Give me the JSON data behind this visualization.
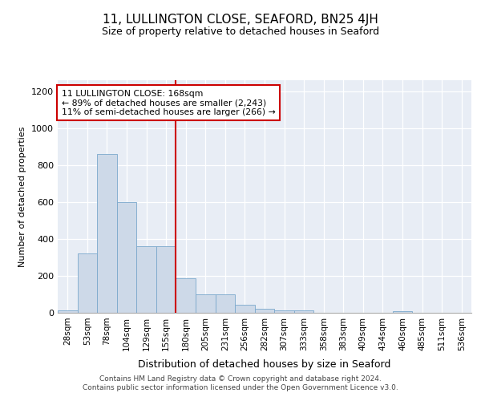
{
  "title": "11, LULLINGTON CLOSE, SEAFORD, BN25 4JH",
  "subtitle": "Size of property relative to detached houses in Seaford",
  "xlabel": "Distribution of detached houses by size in Seaford",
  "ylabel": "Number of detached properties",
  "categories": [
    "28sqm",
    "53sqm",
    "78sqm",
    "104sqm",
    "129sqm",
    "155sqm",
    "180sqm",
    "205sqm",
    "231sqm",
    "256sqm",
    "282sqm",
    "307sqm",
    "333sqm",
    "358sqm",
    "383sqm",
    "409sqm",
    "434sqm",
    "460sqm",
    "485sqm",
    "511sqm",
    "536sqm"
  ],
  "values": [
    15,
    320,
    860,
    600,
    360,
    360,
    185,
    100,
    100,
    45,
    20,
    15,
    15,
    0,
    0,
    0,
    0,
    8,
    0,
    0,
    0
  ],
  "bar_color": "#cdd9e8",
  "bar_edge_color": "#7aa8cc",
  "vline_color": "#cc0000",
  "vline_pos": 6,
  "ylim": [
    0,
    1260
  ],
  "yticks": [
    0,
    200,
    400,
    600,
    800,
    1000,
    1200
  ],
  "annotation_lines": [
    "11 LULLINGTON CLOSE: 168sqm",
    "← 89% of detached houses are smaller (2,243)",
    "11% of semi-detached houses are larger (266) →"
  ],
  "bg_color": "#e8edf5",
  "grid_color": "#ffffff",
  "footer_line1": "Contains HM Land Registry data © Crown copyright and database right 2024.",
  "footer_line2": "Contains public sector information licensed under the Open Government Licence v3.0.",
  "title_fontsize": 11,
  "subtitle_fontsize": 9,
  "tick_fontsize": 7.5,
  "ylabel_fontsize": 8,
  "xlabel_fontsize": 9
}
